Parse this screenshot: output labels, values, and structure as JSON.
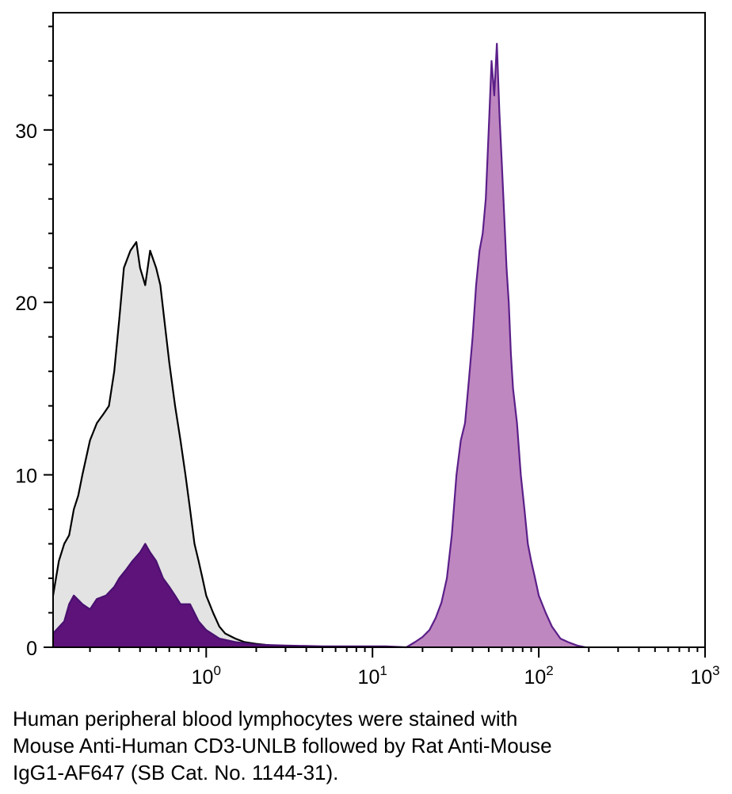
{
  "chart_data": {
    "type": "area",
    "x_scale": "log",
    "xlim": [
      0.12,
      1000
    ],
    "ylim": [
      0,
      36.8
    ],
    "y_ticks": [
      0,
      10,
      20,
      30
    ],
    "x_ticks": [
      {
        "value": 1,
        "base": "10",
        "exp": "0"
      },
      {
        "value": 10,
        "base": "10",
        "exp": "1"
      },
      {
        "value": 100,
        "base": "10",
        "exp": "2"
      },
      {
        "value": 1000,
        "base": "10",
        "exp": "3"
      }
    ],
    "grid": false,
    "series": [
      {
        "key": "control",
        "fill": "#e3e3e3",
        "stroke": "#000000",
        "points": [
          [
            0.12,
            3
          ],
          [
            0.13,
            5
          ],
          [
            0.14,
            6
          ],
          [
            0.15,
            6.5
          ],
          [
            0.16,
            8
          ],
          [
            0.17,
            8.8
          ],
          [
            0.18,
            10
          ],
          [
            0.2,
            12
          ],
          [
            0.22,
            13
          ],
          [
            0.24,
            13.5
          ],
          [
            0.26,
            14
          ],
          [
            0.28,
            16
          ],
          [
            0.3,
            19
          ],
          [
            0.32,
            22
          ],
          [
            0.35,
            23
          ],
          [
            0.38,
            23.5
          ],
          [
            0.4,
            22
          ],
          [
            0.43,
            21
          ],
          [
            0.46,
            23
          ],
          [
            0.5,
            22
          ],
          [
            0.53,
            21
          ],
          [
            0.56,
            19
          ],
          [
            0.6,
            16.5
          ],
          [
            0.65,
            14
          ],
          [
            0.7,
            12
          ],
          [
            0.75,
            10
          ],
          [
            0.8,
            8
          ],
          [
            0.85,
            6
          ],
          [
            0.9,
            5
          ],
          [
            0.95,
            4
          ],
          [
            1.0,
            3
          ],
          [
            1.1,
            2
          ],
          [
            1.2,
            1.2
          ],
          [
            1.3,
            0.8
          ],
          [
            1.5,
            0.5
          ],
          [
            1.7,
            0.3
          ],
          [
            2.0,
            0.2
          ],
          [
            2.5,
            0.1
          ],
          [
            3.0,
            0
          ]
        ]
      },
      {
        "key": "stained",
        "fill": "#bf87c0",
        "stroke": "#5b1f89",
        "points": [
          [
            16,
            0
          ],
          [
            18,
            0.3
          ],
          [
            20,
            0.6
          ],
          [
            22,
            1.0
          ],
          [
            24,
            1.7
          ],
          [
            26,
            2.6
          ],
          [
            28,
            4.0
          ],
          [
            30,
            6.5
          ],
          [
            32,
            10
          ],
          [
            34,
            12
          ],
          [
            36,
            13
          ],
          [
            38,
            15.5
          ],
          [
            40,
            18
          ],
          [
            42,
            21
          ],
          [
            44,
            23
          ],
          [
            46,
            24
          ],
          [
            48,
            26
          ],
          [
            50,
            30
          ],
          [
            52,
            34
          ],
          [
            54,
            32
          ],
          [
            56,
            35
          ],
          [
            58,
            31
          ],
          [
            60,
            28
          ],
          [
            62,
            25
          ],
          [
            64,
            22
          ],
          [
            66,
            20
          ],
          [
            68,
            17
          ],
          [
            70,
            15
          ],
          [
            74,
            13
          ],
          [
            78,
            10
          ],
          [
            82,
            8
          ],
          [
            86,
            6
          ],
          [
            90,
            5
          ],
          [
            95,
            4
          ],
          [
            100,
            3
          ],
          [
            110,
            2
          ],
          [
            120,
            1.2
          ],
          [
            135,
            0.5
          ],
          [
            150,
            0.3
          ],
          [
            170,
            0.1
          ],
          [
            190,
            0
          ]
        ]
      },
      {
        "key": "stained-low",
        "fill": "#5e137a",
        "stroke": "#4a1070",
        "points": [
          [
            0.12,
            0.8
          ],
          [
            0.14,
            1.5
          ],
          [
            0.15,
            2.5
          ],
          [
            0.16,
            3
          ],
          [
            0.18,
            2.5
          ],
          [
            0.2,
            2.2
          ],
          [
            0.22,
            2.8
          ],
          [
            0.25,
            3
          ],
          [
            0.28,
            3.5
          ],
          [
            0.3,
            4
          ],
          [
            0.33,
            4.5
          ],
          [
            0.36,
            5
          ],
          [
            0.4,
            5.5
          ],
          [
            0.43,
            6
          ],
          [
            0.46,
            5.5
          ],
          [
            0.5,
            5
          ],
          [
            0.55,
            4
          ],
          [
            0.6,
            3.5
          ],
          [
            0.65,
            3
          ],
          [
            0.7,
            2.5
          ],
          [
            0.8,
            2.5
          ],
          [
            0.9,
            1.5
          ],
          [
            1.0,
            1.0
          ],
          [
            1.2,
            0.5
          ],
          [
            1.5,
            0.3
          ],
          [
            2.0,
            0.15
          ],
          [
            3.0,
            0.1
          ],
          [
            5.0,
            0.05
          ],
          [
            8.0,
            0.05
          ],
          [
            12,
            0.05
          ],
          [
            16,
            0
          ]
        ]
      }
    ]
  },
  "caption": [
    "Human peripheral blood lymphocytes were stained with",
    "Mouse Anti-Human CD3-UNLB followed by Rat Anti-Mouse",
    "IgG1-AF647 (SB Cat. No. 1144-31)."
  ]
}
